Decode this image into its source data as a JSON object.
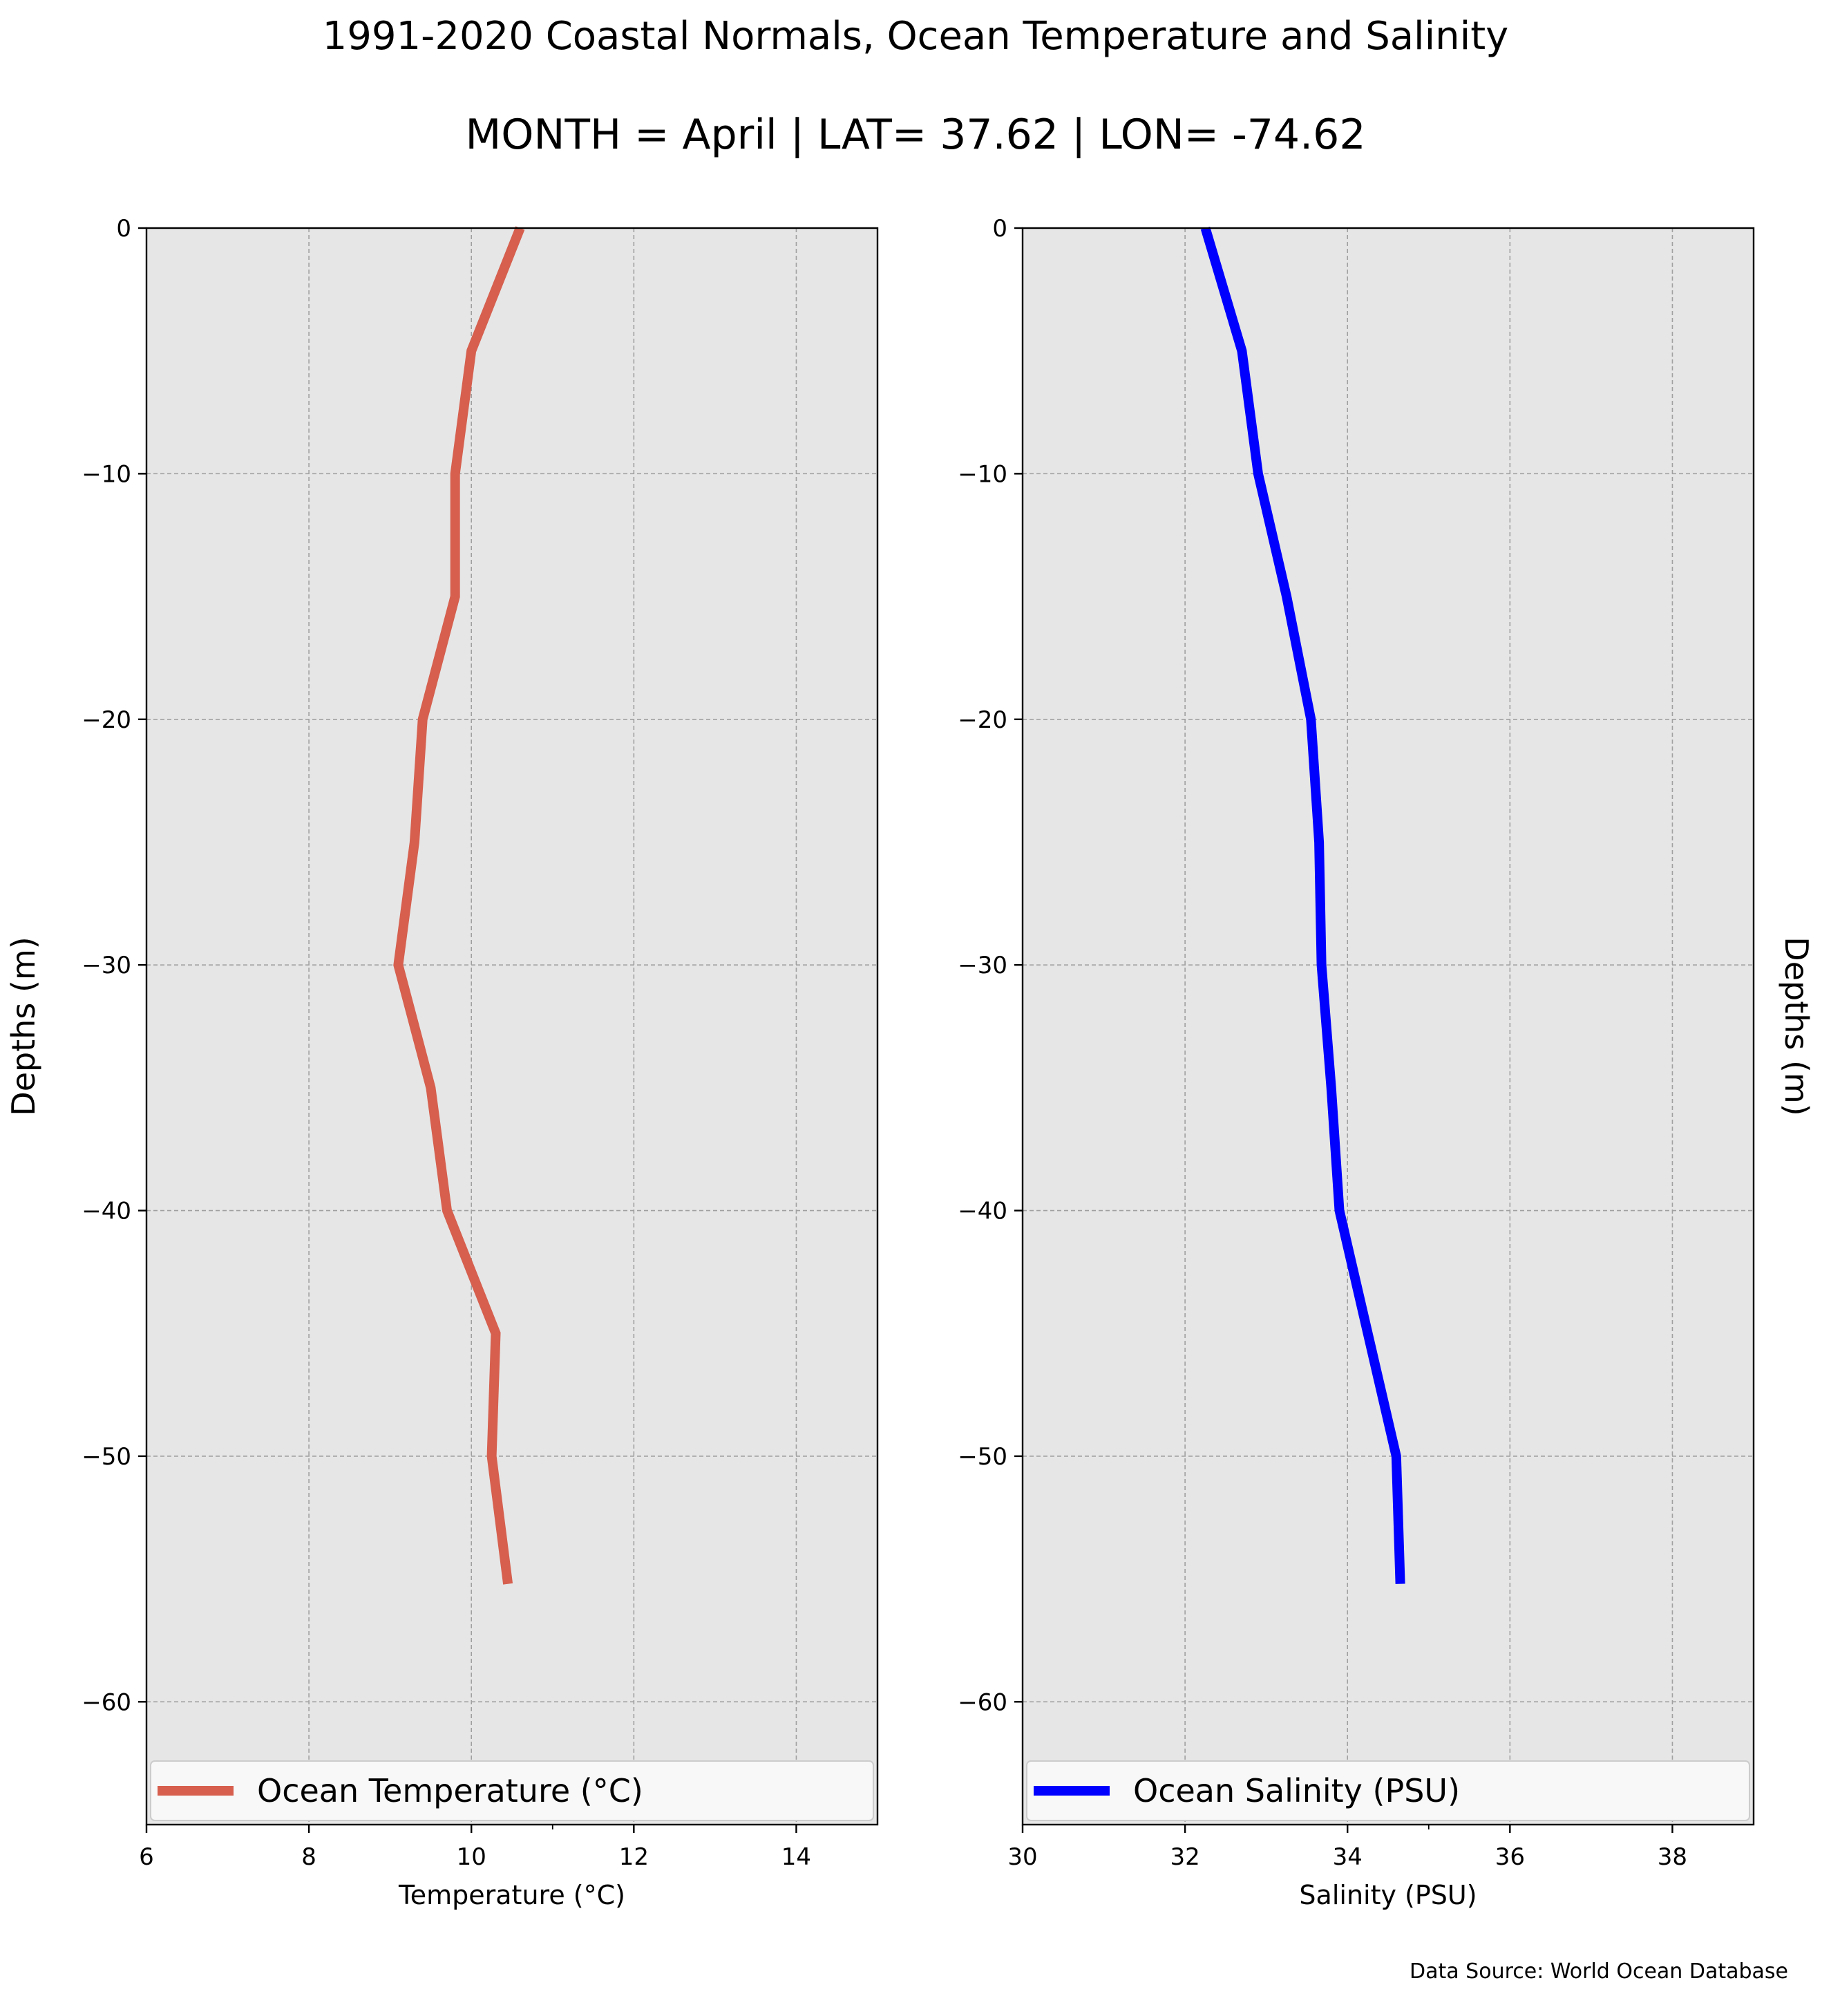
{
  "figure": {
    "title": "1991-2020 Coastal Normals, Ocean Temperature and Salinity",
    "subtitle": "MONTH = April | LAT= 37.62 | LON= -74.62",
    "source": "Data Source: World Ocean Database"
  },
  "colors": {
    "temperature": "#d65f4e",
    "salinity": "#0000ff",
    "plot_background": "#e6e6e6",
    "grid": "#a0a0a0"
  },
  "chart_data": [
    {
      "type": "line",
      "xlabel": "Temperature (°C)",
      "ylabel": "Depths (m)",
      "ylabel_side": "left",
      "xlim": [
        6,
        15
      ],
      "ylim": [
        -65,
        0
      ],
      "xticks": [
        6,
        8,
        10,
        12,
        14
      ],
      "yticks": [
        0,
        -10,
        -20,
        -30,
        -40,
        -50,
        -60
      ],
      "grid": true,
      "legend_position": "bottom",
      "series": [
        {
          "name": "Ocean Temperature (°C)",
          "x": [
            10.6,
            10.0,
            9.8,
            9.8,
            9.4,
            9.3,
            9.1,
            9.5,
            9.7,
            10.3,
            10.25,
            10.45
          ],
          "y": [
            0,
            -5,
            -10,
            -15,
            -20,
            -25,
            -30,
            -35,
            -40,
            -45,
            -50,
            -55.2
          ]
        }
      ]
    },
    {
      "type": "line",
      "xlabel": "Salinity (PSU)",
      "ylabel": "Depths (m)",
      "ylabel_side": "right",
      "xlim": [
        30,
        39
      ],
      "ylim": [
        -65,
        0
      ],
      "xticks": [
        30,
        32,
        34,
        36,
        38
      ],
      "yticks": [
        0,
        -10,
        -20,
        -30,
        -40,
        -50,
        -60
      ],
      "grid": true,
      "legend_position": "bottom",
      "series": [
        {
          "name": "Ocean Salinity (PSU)",
          "x": [
            32.25,
            32.7,
            32.9,
            33.25,
            33.55,
            33.65,
            33.68,
            33.8,
            33.9,
            34.25,
            34.6,
            34.65
          ],
          "y": [
            0,
            -5,
            -10,
            -15,
            -20,
            -25,
            -30,
            -35,
            -40,
            -45,
            -50,
            -55.2
          ]
        }
      ]
    }
  ]
}
